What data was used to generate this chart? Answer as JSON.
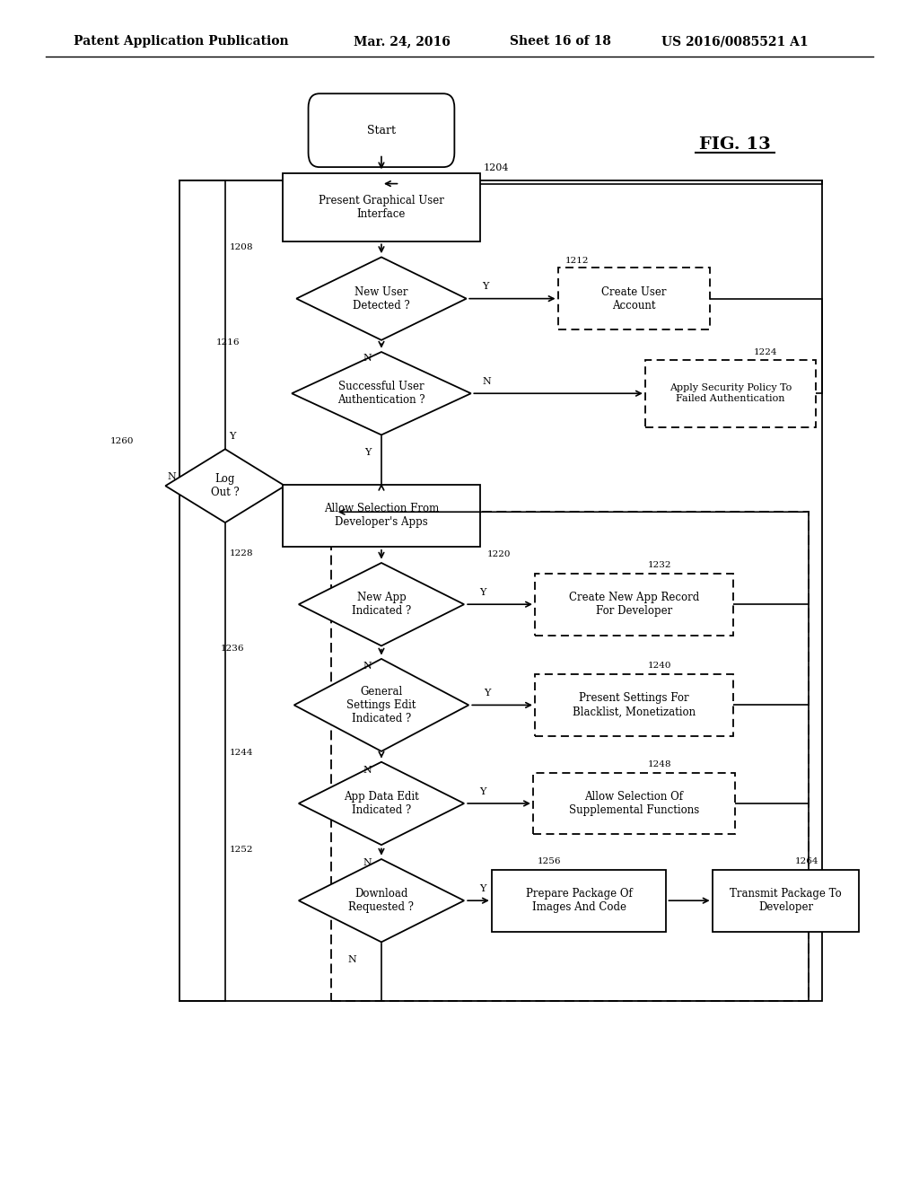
{
  "bg_color": "#ffffff",
  "header_text": "Patent Application Publication",
  "header_date": "Mar. 24, 2016",
  "header_sheet": "Sheet 16 of 18",
  "header_patent": "US 2016/0085521 A1",
  "fig_label": "FIG. 13"
}
